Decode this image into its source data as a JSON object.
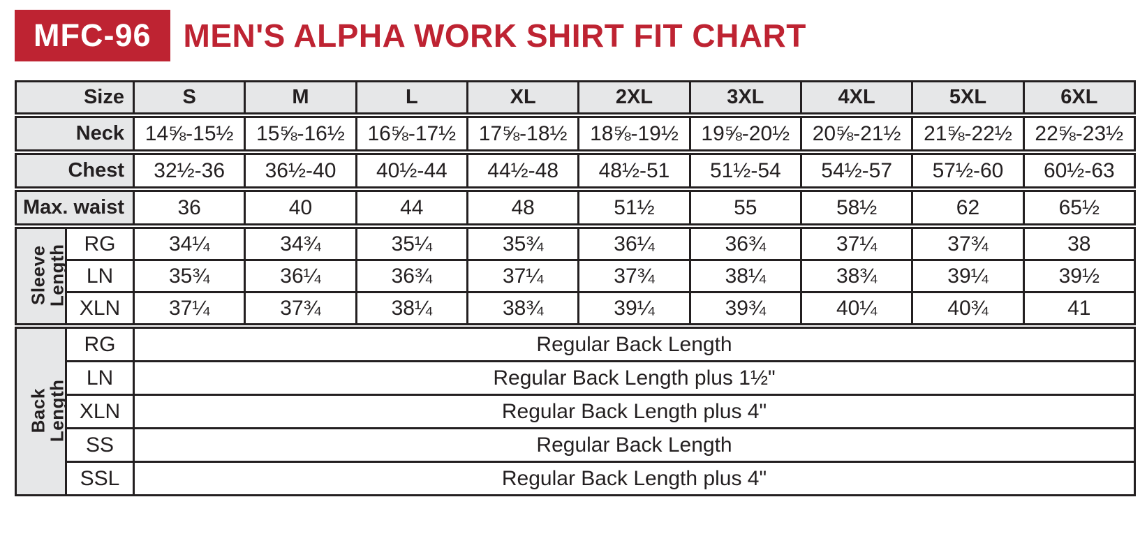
{
  "header": {
    "badge": "MFC-96",
    "title": "MEN'S ALPHA WORK SHIRT FIT CHART"
  },
  "colors": {
    "accent_red": "#be2332",
    "header_gray": "#e6e7e8",
    "ink_black": "#231f20"
  },
  "chart_data": {
    "type": "table",
    "product_code": "MFC-96",
    "title": "MEN'S ALPHA WORK SHIRT FIT CHART",
    "columns": [
      "Size",
      "S",
      "M",
      "L",
      "XL",
      "2XL",
      "3XL",
      "4XL",
      "5XL",
      "6XL"
    ],
    "rows": [
      {
        "label": "Neck",
        "values": [
          "14⅝-15½",
          "15⅝-16½",
          "16⅝-17½",
          "17⅝-18½",
          "18⅝-19½",
          "19⅝-20½",
          "20⅝-21½",
          "21⅝-22½",
          "22⅝-23½"
        ]
      },
      {
        "label": "Chest",
        "values": [
          "32½-36",
          "36½-40",
          "40½-44",
          "44½-48",
          "48½-51",
          "51½-54",
          "54½-57",
          "57½-60",
          "60½-63"
        ]
      },
      {
        "label": "Max. waist",
        "values": [
          "36",
          "40",
          "44",
          "48",
          "51½",
          "55",
          "58½",
          "62",
          "65½"
        ]
      }
    ],
    "sleeve_length": {
      "group_label": "Sleeve\nLength",
      "rows": [
        {
          "fit": "RG",
          "values": [
            "34¼",
            "34¾",
            "35¼",
            "35¾",
            "36¼",
            "36¾",
            "37¼",
            "37¾",
            "38"
          ]
        },
        {
          "fit": "LN",
          "values": [
            "35¾",
            "36¼",
            "36¾",
            "37¼",
            "37¾",
            "38¼",
            "38¾",
            "39¼",
            "39½"
          ]
        },
        {
          "fit": "XLN",
          "values": [
            "37¼",
            "37¾",
            "38¼",
            "38¾",
            "39¼",
            "39¾",
            "40¼",
            "40¾",
            "41"
          ]
        }
      ]
    },
    "back_length": {
      "group_label": "Back Length",
      "rows": [
        {
          "fit": "RG",
          "value": "Regular Back Length"
        },
        {
          "fit": "LN",
          "value": "Regular Back Length plus 1½\""
        },
        {
          "fit": "XLN",
          "value": "Regular Back Length plus 4\""
        },
        {
          "fit": "SS",
          "value": "Regular Back Length"
        },
        {
          "fit": "SSL",
          "value": "Regular Back Length plus 4\""
        }
      ]
    }
  }
}
